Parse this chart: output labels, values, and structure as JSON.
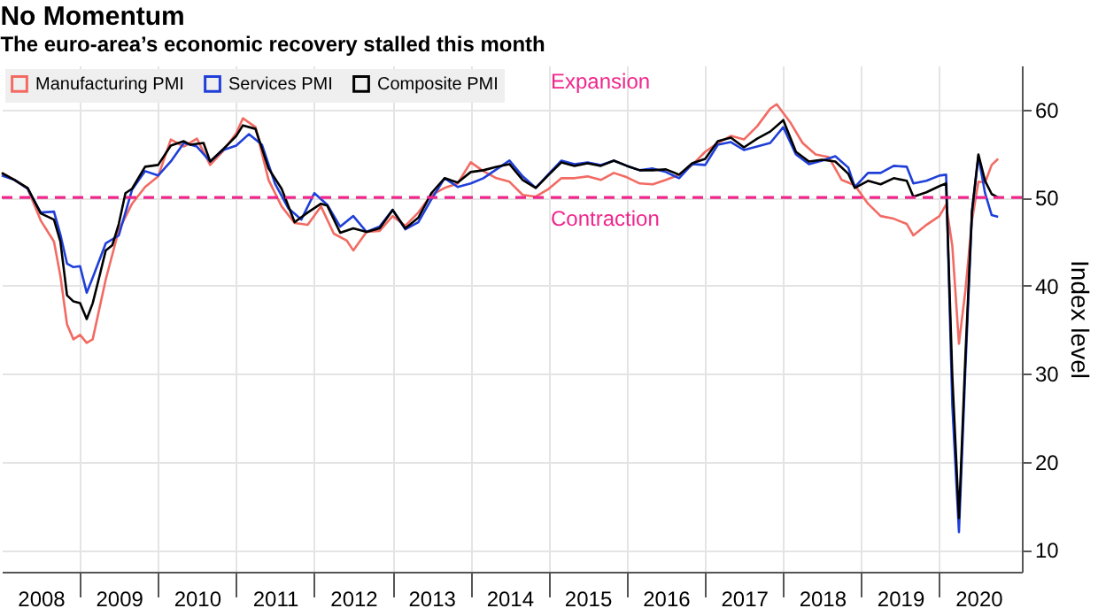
{
  "chart_data": {
    "type": "line",
    "title": "No Momentum",
    "subtitle": "The euro-area’s economic recovery stalled this month",
    "ylabel": "Index level",
    "xlim": [
      "2008-01-01",
      "2021-01-20"
    ],
    "ylim": [
      7.5,
      65
    ],
    "yticks": [
      10,
      20,
      30,
      40,
      50,
      60
    ],
    "xticks": [
      {
        "value": "2008-07-01",
        "label": "2008"
      },
      {
        "value": "2009-07-01",
        "label": "2009"
      },
      {
        "value": "2010-07-01",
        "label": "2010"
      },
      {
        "value": "2011-07-01",
        "label": "2011"
      },
      {
        "value": "2012-07-01",
        "label": "2012"
      },
      {
        "value": "2013-07-01",
        "label": "2013"
      },
      {
        "value": "2014-07-01",
        "label": "2014"
      },
      {
        "value": "2015-07-01",
        "label": "2015"
      },
      {
        "value": "2016-07-01",
        "label": "2016"
      },
      {
        "value": "2017-07-01",
        "label": "2017"
      },
      {
        "value": "2018-07-01",
        "label": "2018"
      },
      {
        "value": "2019-07-01",
        "label": "2019"
      },
      {
        "value": "2020-07-01",
        "label": "2020"
      },
      {
        "value": "2009-01-01",
        "label": null
      },
      {
        "value": "2010-01-01",
        "label": null
      },
      {
        "value": "2011-01-01",
        "label": null
      },
      {
        "value": "2012-01-01",
        "label": null
      },
      {
        "value": "2013-01-01",
        "label": null
      },
      {
        "value": "2014-01-01",
        "label": null
      },
      {
        "value": "2015-01-01",
        "label": null
      },
      {
        "value": "2016-01-01",
        "label": null
      },
      {
        "value": "2017-01-01",
        "label": null
      },
      {
        "value": "2018-01-01",
        "label": null
      },
      {
        "value": "2019-01-01",
        "label": null
      },
      {
        "value": "2020-01-01",
        "label": null
      }
    ],
    "grid": true,
    "legend": "top left",
    "line_style": "solid",
    "ref_lines": [
      {
        "axis": "y",
        "value": 50,
        "color": "#f0268c",
        "line_style": "dashed"
      }
    ],
    "annotations": [
      "Expansion",
      "Contraction"
    ],
    "series": [
      {
        "name": "Manufacturing PMI",
        "color": "#f26b63",
        "x": [
          "2008-01",
          "2008-03",
          "2008-05",
          "2008-07",
          "2008-09",
          "2008-10",
          "2008-11",
          "2008-12",
          "2009-01",
          "2009-02",
          "2009-03",
          "2009-05",
          "2009-07",
          "2009-09",
          "2009-11",
          "2010-01",
          "2010-03",
          "2010-05",
          "2010-07",
          "2010-09",
          "2010-11",
          "2011-01",
          "2011-02",
          "2011-04",
          "2011-06",
          "2011-08",
          "2011-10",
          "2011-12",
          "2012-02",
          "2012-04",
          "2012-06",
          "2012-07",
          "2012-09",
          "2012-11",
          "2013-01",
          "2013-03",
          "2013-05",
          "2013-07",
          "2013-09",
          "2013-11",
          "2014-01",
          "2014-03",
          "2014-05",
          "2014-07",
          "2014-09",
          "2014-11",
          "2015-01",
          "2015-03",
          "2015-05",
          "2015-07",
          "2015-09",
          "2015-11",
          "2016-01",
          "2016-03",
          "2016-05",
          "2016-07",
          "2016-09",
          "2016-11",
          "2017-01",
          "2017-03",
          "2017-05",
          "2017-07",
          "2017-09",
          "2017-11",
          "2017-12",
          "2018-02",
          "2018-04",
          "2018-06",
          "2018-08",
          "2018-10",
          "2018-12",
          "2019-02",
          "2019-04",
          "2019-06",
          "2019-08",
          "2019-09",
          "2019-11",
          "2020-01",
          "2020-02",
          "2020-03",
          "2020-04",
          "2020-05",
          "2020-06",
          "2020-07",
          "2020-08",
          "2020-09",
          "2020-10"
        ],
        "values": [
          52.8,
          52.0,
          51.0,
          47.4,
          45.0,
          41.1,
          35.6,
          33.9,
          34.4,
          33.5,
          33.9,
          40.7,
          46.3,
          49.3,
          51.2,
          52.4,
          56.6,
          55.8,
          56.7,
          53.7,
          55.3,
          57.3,
          59.0,
          58.0,
          52.0,
          49.0,
          47.1,
          46.9,
          49.0,
          45.9,
          45.1,
          44.0,
          46.1,
          46.2,
          47.9,
          46.8,
          48.3,
          50.3,
          51.1,
          51.6,
          54.0,
          53.0,
          52.2,
          51.8,
          50.3,
          50.1,
          51.0,
          52.2,
          52.2,
          52.4,
          52.0,
          52.8,
          52.3,
          51.6,
          51.5,
          52.0,
          52.6,
          53.7,
          55.2,
          56.2,
          57.0,
          56.6,
          58.1,
          60.1,
          60.6,
          58.6,
          56.2,
          54.9,
          54.6,
          52.0,
          51.4,
          49.3,
          47.9,
          47.6,
          47.0,
          45.7,
          46.9,
          47.9,
          49.2,
          44.5,
          33.4,
          39.4,
          47.4,
          51.8,
          51.7,
          53.7,
          54.4
        ]
      },
      {
        "name": "Services PMI",
        "color": "#1f3fd8",
        "x": [
          "2008-01",
          "2008-03",
          "2008-05",
          "2008-07",
          "2008-09",
          "2008-10",
          "2008-11",
          "2008-12",
          "2009-01",
          "2009-02",
          "2009-03",
          "2009-05",
          "2009-07",
          "2009-09",
          "2009-11",
          "2010-01",
          "2010-03",
          "2010-05",
          "2010-07",
          "2010-09",
          "2010-11",
          "2011-01",
          "2011-03",
          "2011-05",
          "2011-07",
          "2011-09",
          "2011-11",
          "2012-01",
          "2012-03",
          "2012-05",
          "2012-07",
          "2012-09",
          "2012-11",
          "2013-01",
          "2013-03",
          "2013-05",
          "2013-07",
          "2013-09",
          "2013-11",
          "2014-01",
          "2014-03",
          "2014-05",
          "2014-07",
          "2014-09",
          "2014-11",
          "2015-01",
          "2015-03",
          "2015-05",
          "2015-07",
          "2015-09",
          "2015-11",
          "2016-01",
          "2016-03",
          "2016-05",
          "2016-07",
          "2016-09",
          "2016-11",
          "2017-01",
          "2017-03",
          "2017-05",
          "2017-07",
          "2017-09",
          "2017-11",
          "2018-01",
          "2018-03",
          "2018-05",
          "2018-07",
          "2018-09",
          "2018-11",
          "2018-12",
          "2019-02",
          "2019-04",
          "2019-06",
          "2019-08",
          "2019-09",
          "2019-11",
          "2020-01",
          "2020-02",
          "2020-03",
          "2020-04",
          "2020-05",
          "2020-06",
          "2020-07",
          "2020-08",
          "2020-09",
          "2020-10"
        ],
        "values": [
          52.5,
          52.0,
          51.0,
          48.3,
          48.4,
          45.8,
          42.5,
          42.1,
          42.2,
          39.2,
          40.9,
          44.8,
          45.7,
          50.9,
          53.0,
          52.5,
          54.1,
          56.2,
          55.8,
          54.1,
          55.4,
          55.9,
          57.2,
          56.0,
          51.6,
          48.8,
          47.5,
          50.5,
          49.2,
          46.7,
          47.9,
          46.1,
          46.7,
          48.6,
          46.4,
          47.2,
          49.8,
          52.2,
          51.2,
          51.6,
          52.2,
          53.2,
          54.2,
          52.4,
          51.1,
          52.7,
          54.2,
          53.8,
          54.0,
          53.7,
          54.2,
          53.6,
          53.1,
          53.3,
          52.9,
          52.2,
          53.8,
          53.7,
          56.0,
          56.3,
          55.4,
          55.8,
          56.2,
          58.0,
          54.9,
          53.8,
          54.2,
          54.7,
          53.4,
          51.2,
          52.8,
          52.8,
          53.6,
          53.5,
          51.6,
          51.9,
          52.5,
          52.6,
          26.4,
          12.0,
          30.5,
          48.3,
          54.7,
          50.5,
          48.0,
          47.8
        ]
      },
      {
        "name": "Composite PMI",
        "color": "#000000",
        "x": [
          "2008-01",
          "2008-03",
          "2008-05",
          "2008-07",
          "2008-09",
          "2008-10",
          "2008-11",
          "2008-12",
          "2009-01",
          "2009-02",
          "2009-03",
          "2009-04",
          "2009-05",
          "2009-06",
          "2009-07",
          "2009-08",
          "2009-09",
          "2009-11",
          "2010-01",
          "2010-03",
          "2010-05",
          "2010-06",
          "2010-08",
          "2010-09",
          "2010-11",
          "2011-01",
          "2011-02",
          "2011-04",
          "2011-06",
          "2011-08",
          "2011-10",
          "2011-12",
          "2012-02",
          "2012-03",
          "2012-05",
          "2012-07",
          "2012-09",
          "2012-11",
          "2013-01",
          "2013-03",
          "2013-05",
          "2013-07",
          "2013-09",
          "2013-11",
          "2014-01",
          "2014-03",
          "2014-05",
          "2014-07",
          "2014-09",
          "2014-11",
          "2015-01",
          "2015-03",
          "2015-05",
          "2015-07",
          "2015-09",
          "2015-11",
          "2016-01",
          "2016-03",
          "2016-05",
          "2016-07",
          "2016-09",
          "2016-11",
          "2017-01",
          "2017-03",
          "2017-05",
          "2017-07",
          "2017-09",
          "2017-11",
          "2018-01",
          "2018-03",
          "2018-05",
          "2018-07",
          "2018-09",
          "2018-11",
          "2018-12",
          "2019-02",
          "2019-04",
          "2019-06",
          "2019-08",
          "2019-09",
          "2019-11",
          "2020-01",
          "2020-02",
          "2020-03",
          "2020-04",
          "2020-05",
          "2020-06",
          "2020-07",
          "2020-08",
          "2020-09",
          "2020-10"
        ],
        "values": [
          52.8,
          52.0,
          51.1,
          48.2,
          47.5,
          45.0,
          38.9,
          38.2,
          38.0,
          36.2,
          38.0,
          41.0,
          44.0,
          44.6,
          47.0,
          50.5,
          51.0,
          53.5,
          53.7,
          55.9,
          56.4,
          56.0,
          56.2,
          54.1,
          55.5,
          57.0,
          58.2,
          57.8,
          53.3,
          51.0,
          47.2,
          48.3,
          49.3,
          49.1,
          46.0,
          46.5,
          46.1,
          46.5,
          48.6,
          46.5,
          47.7,
          50.5,
          52.2,
          51.7,
          52.9,
          53.1,
          53.5,
          53.8,
          52.0,
          51.1,
          52.6,
          54.0,
          53.6,
          53.9,
          53.6,
          54.2,
          53.6,
          53.1,
          53.1,
          53.2,
          52.6,
          53.9,
          54.4,
          56.4,
          56.8,
          55.7,
          56.7,
          57.5,
          58.8,
          55.2,
          54.1,
          54.3,
          54.1,
          52.7,
          51.1,
          51.9,
          51.5,
          52.2,
          51.9,
          50.1,
          50.6,
          51.3,
          51.6,
          29.7,
          13.6,
          31.9,
          48.5,
          54.9,
          51.9,
          50.4,
          50.0
        ]
      }
    ]
  }
}
